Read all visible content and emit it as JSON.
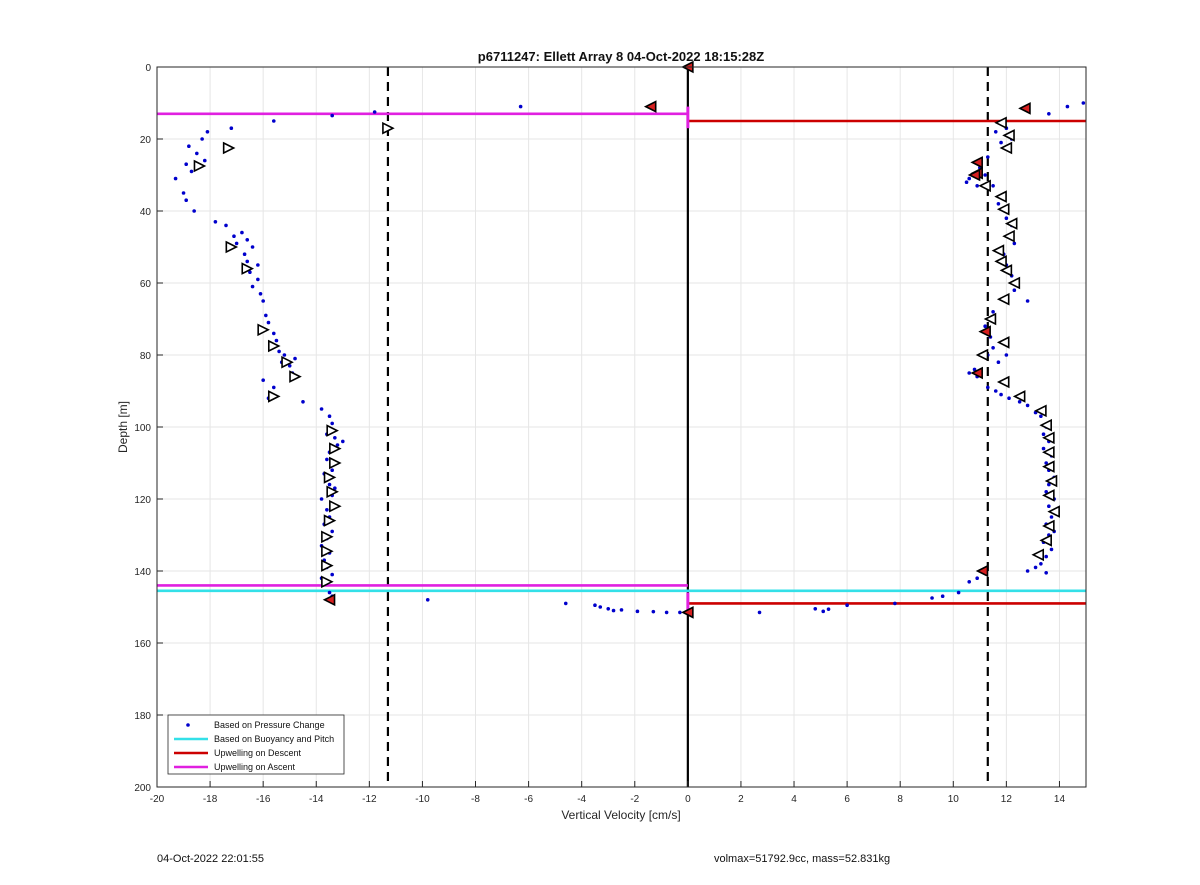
{
  "footer": {
    "timestamp": "04-Oct-2022 22:01:55",
    "info": "volmax=51792.9cc, mass=52.831kg"
  },
  "chart_data": {
    "type": "scatter",
    "title": "p6711247: Ellett Array 8 04-Oct-2022 18:15:28Z",
    "xlabel": "Vertical Velocity [cm/s]",
    "ylabel": "Depth [m]",
    "xlim": [
      -20,
      15
    ],
    "ylim": [
      0,
      200
    ],
    "y_reversed": true,
    "grid": true,
    "xticks": [
      -20,
      -18,
      -16,
      -14,
      -12,
      -10,
      -8,
      -6,
      -4,
      -2,
      0,
      2,
      4,
      6,
      8,
      10,
      12,
      14
    ],
    "yticks": [
      0,
      20,
      40,
      60,
      80,
      100,
      120,
      140,
      160,
      180,
      200
    ],
    "legend_position": "bottom-left",
    "legend": [
      {
        "label": "Based on Pressure Change",
        "color": "#0000cc",
        "marker": "dot"
      },
      {
        "label": "Based on Buoyancy and Pitch",
        "color": "#33e0e8",
        "marker": "line"
      },
      {
        "label": "Upwelling on Descent",
        "color": "#cc0000",
        "marker": "line"
      },
      {
        "label": "Upwelling on Ascent",
        "color": "#e020e0",
        "marker": "line"
      }
    ],
    "dashed_vlines": [
      -11.3,
      11.3
    ],
    "center_vline": 0,
    "hlines": [
      {
        "x0": -20,
        "x1": 0,
        "y": 13,
        "color": "#e020e0"
      },
      {
        "x0": 0,
        "x1": 15,
        "y": 15,
        "color": "#cc0000"
      },
      {
        "x0": -20,
        "x1": 0,
        "y": 144,
        "color": "#e020e0"
      },
      {
        "x0": -20,
        "x1": 15,
        "y": 145.5,
        "color": "#33e0e8"
      },
      {
        "x0": 0,
        "x1": 15,
        "y": 149,
        "color": "#cc0000"
      }
    ],
    "pressure_points": [
      [
        -19.3,
        31
      ],
      [
        -19.0,
        35
      ],
      [
        -18.9,
        27
      ],
      [
        -18.9,
        37
      ],
      [
        -18.8,
        22
      ],
      [
        -18.7,
        29
      ],
      [
        -18.6,
        40
      ],
      [
        -18.5,
        24
      ],
      [
        -18.3,
        20
      ],
      [
        -18.2,
        26
      ],
      [
        -18.1,
        18
      ],
      [
        -17.8,
        43
      ],
      [
        -17.4,
        44
      ],
      [
        -17.2,
        17
      ],
      [
        -17.1,
        47
      ],
      [
        -17.0,
        49
      ],
      [
        -16.8,
        46
      ],
      [
        -16.7,
        52
      ],
      [
        -16.6,
        54
      ],
      [
        -16.6,
        48
      ],
      [
        -16.5,
        57
      ],
      [
        -16.4,
        50
      ],
      [
        -16.4,
        61
      ],
      [
        -16.2,
        55
      ],
      [
        -16.2,
        59
      ],
      [
        -16.1,
        63
      ],
      [
        -16.0,
        65
      ],
      [
        -15.9,
        69
      ],
      [
        -15.8,
        71
      ],
      [
        -15.6,
        15
      ],
      [
        -15.6,
        74
      ],
      [
        -15.5,
        76
      ],
      [
        -15.4,
        79
      ],
      [
        -15.3,
        82
      ],
      [
        -15.2,
        80
      ],
      [
        -15.0,
        83
      ],
      [
        -14.9,
        85
      ],
      [
        -14.8,
        81
      ],
      [
        -15.6,
        89
      ],
      [
        -15.8,
        92
      ],
      [
        -16.0,
        87
      ],
      [
        -14.5,
        93
      ],
      [
        -13.8,
        95
      ],
      [
        -13.5,
        97
      ],
      [
        -13.4,
        99
      ],
      [
        -13.6,
        102
      ],
      [
        -13.3,
        103
      ],
      [
        -13.2,
        105
      ],
      [
        -13.0,
        104
      ],
      [
        -13.5,
        107
      ],
      [
        -13.6,
        109
      ],
      [
        -13.4,
        112
      ],
      [
        -13.7,
        113
      ],
      [
        -13.5,
        116
      ],
      [
        -13.3,
        117
      ],
      [
        -13.4,
        119
      ],
      [
        -13.8,
        120
      ],
      [
        -13.6,
        123
      ],
      [
        -13.5,
        125
      ],
      [
        -13.7,
        127
      ],
      [
        -13.4,
        129
      ],
      [
        -13.6,
        131
      ],
      [
        -13.8,
        133
      ],
      [
        -13.5,
        135
      ],
      [
        -13.7,
        137
      ],
      [
        -13.6,
        139
      ],
      [
        -13.4,
        141
      ],
      [
        -13.8,
        142
      ],
      [
        -13.5,
        146
      ],
      [
        -13.4,
        147
      ],
      [
        -13.4,
        13.5
      ],
      [
        -11.8,
        12.5
      ],
      [
        -6.3,
        11
      ],
      [
        -9.8,
        148
      ],
      [
        -4.6,
        149
      ],
      [
        -3.5,
        149.5
      ],
      [
        -3.3,
        150
      ],
      [
        -3.0,
        150.5
      ],
      [
        -2.8,
        151
      ],
      [
        -2.5,
        150.8
      ],
      [
        -1.9,
        151.2
      ],
      [
        -1.3,
        151.3
      ],
      [
        -0.8,
        151.5
      ],
      [
        -0.3,
        151.5
      ],
      [
        2.7,
        151.5
      ],
      [
        4.8,
        150.5
      ],
      [
        5.1,
        151.2
      ],
      [
        5.3,
        150.6
      ],
      [
        6.0,
        149.5
      ],
      [
        7.8,
        149
      ],
      [
        9.2,
        147.5
      ],
      [
        9.6,
        147
      ],
      [
        10.2,
        146
      ],
      [
        10.6,
        143
      ],
      [
        10.9,
        142
      ],
      [
        14.9,
        10
      ],
      [
        14.3,
        11
      ],
      [
        13.6,
        13
      ],
      [
        12.8,
        11
      ],
      [
        12.0,
        17
      ],
      [
        12.2,
        20
      ],
      [
        11.8,
        21
      ],
      [
        11.6,
        18
      ],
      [
        11.3,
        25
      ],
      [
        11.0,
        28
      ],
      [
        11.2,
        30
      ],
      [
        10.6,
        31
      ],
      [
        10.5,
        32
      ],
      [
        10.9,
        33
      ],
      [
        11.5,
        33
      ],
      [
        11.8,
        36
      ],
      [
        11.7,
        38
      ],
      [
        12.0,
        42
      ],
      [
        12.2,
        44
      ],
      [
        12.1,
        47
      ],
      [
        12.3,
        49
      ],
      [
        11.9,
        52
      ],
      [
        12.0,
        55
      ],
      [
        12.2,
        58
      ],
      [
        12.3,
        62
      ],
      [
        12.8,
        65
      ],
      [
        11.5,
        68
      ],
      [
        11.4,
        70
      ],
      [
        11.2,
        72
      ],
      [
        11.4,
        75
      ],
      [
        11.5,
        78
      ],
      [
        11.3,
        80
      ],
      [
        12.0,
        80
      ],
      [
        11.7,
        82
      ],
      [
        10.8,
        84
      ],
      [
        10.6,
        85
      ],
      [
        10.9,
        86
      ],
      [
        11.3,
        89
      ],
      [
        11.6,
        90
      ],
      [
        11.8,
        91
      ],
      [
        12.1,
        92
      ],
      [
        12.5,
        93
      ],
      [
        12.8,
        94
      ],
      [
        13.1,
        96
      ],
      [
        13.3,
        97
      ],
      [
        13.5,
        100
      ],
      [
        13.4,
        102
      ],
      [
        13.6,
        104
      ],
      [
        13.4,
        106
      ],
      [
        13.7,
        108
      ],
      [
        13.5,
        110
      ],
      [
        13.6,
        112
      ],
      [
        13.8,
        114
      ],
      [
        13.6,
        116
      ],
      [
        13.5,
        118
      ],
      [
        13.8,
        120
      ],
      [
        13.6,
        122
      ],
      [
        13.7,
        125
      ],
      [
        13.5,
        127
      ],
      [
        13.8,
        129
      ],
      [
        13.6,
        130
      ],
      [
        13.4,
        132
      ],
      [
        13.7,
        134
      ],
      [
        13.5,
        136
      ],
      [
        13.3,
        138
      ],
      [
        13.1,
        139
      ],
      [
        12.8,
        140
      ],
      [
        13.5,
        140.5
      ]
    ],
    "ascent_markers": [
      [
        -17.3,
        22.5
      ],
      [
        -18.4,
        27.5
      ],
      [
        -17.2,
        50
      ],
      [
        -16.6,
        56
      ],
      [
        -16.0,
        73
      ],
      [
        -15.6,
        77.5
      ],
      [
        -15.1,
        82
      ],
      [
        -14.8,
        86
      ],
      [
        -15.6,
        91.5
      ],
      [
        -13.4,
        101
      ],
      [
        -13.3,
        106
      ],
      [
        -13.3,
        110
      ],
      [
        -13.5,
        114
      ],
      [
        -13.4,
        118
      ],
      [
        -13.3,
        122
      ],
      [
        -13.5,
        126
      ],
      [
        -13.6,
        130.5
      ],
      [
        -13.6,
        134.5
      ],
      [
        -13.6,
        138.5
      ],
      [
        -13.6,
        143
      ],
      [
        -11.3,
        17
      ]
    ],
    "descent_markers": [
      [
        11.8,
        15.5
      ],
      [
        12.1,
        19
      ],
      [
        12.0,
        22.5
      ],
      [
        11.2,
        33
      ],
      [
        11.8,
        36
      ],
      [
        11.9,
        39.5
      ],
      [
        12.2,
        43.5
      ],
      [
        12.1,
        47
      ],
      [
        11.7,
        51
      ],
      [
        11.8,
        54
      ],
      [
        12.0,
        56.5
      ],
      [
        12.3,
        60
      ],
      [
        11.9,
        64.5
      ],
      [
        11.4,
        70
      ],
      [
        11.9,
        76.5
      ],
      [
        11.1,
        80
      ],
      [
        11.9,
        87.5
      ],
      [
        12.5,
        91.5
      ],
      [
        13.3,
        95.5
      ],
      [
        13.5,
        99.5
      ],
      [
        13.6,
        103
      ],
      [
        13.6,
        107
      ],
      [
        13.6,
        111
      ],
      [
        13.7,
        115
      ],
      [
        13.6,
        119
      ],
      [
        13.8,
        123.5
      ],
      [
        13.6,
        127.5
      ],
      [
        13.5,
        131.5
      ],
      [
        13.2,
        135.5
      ]
    ],
    "red_markers": [
      [
        -1.4,
        11
      ],
      [
        12.7,
        11.5
      ],
      [
        10.9,
        26.5
      ],
      [
        10.9,
        29.5
      ],
      [
        10.8,
        30
      ],
      [
        11.2,
        73.5
      ],
      [
        10.9,
        85
      ],
      [
        11.1,
        140
      ],
      [
        -13.5,
        148
      ],
      [
        0,
        151.5
      ],
      [
        0,
        0
      ]
    ]
  }
}
